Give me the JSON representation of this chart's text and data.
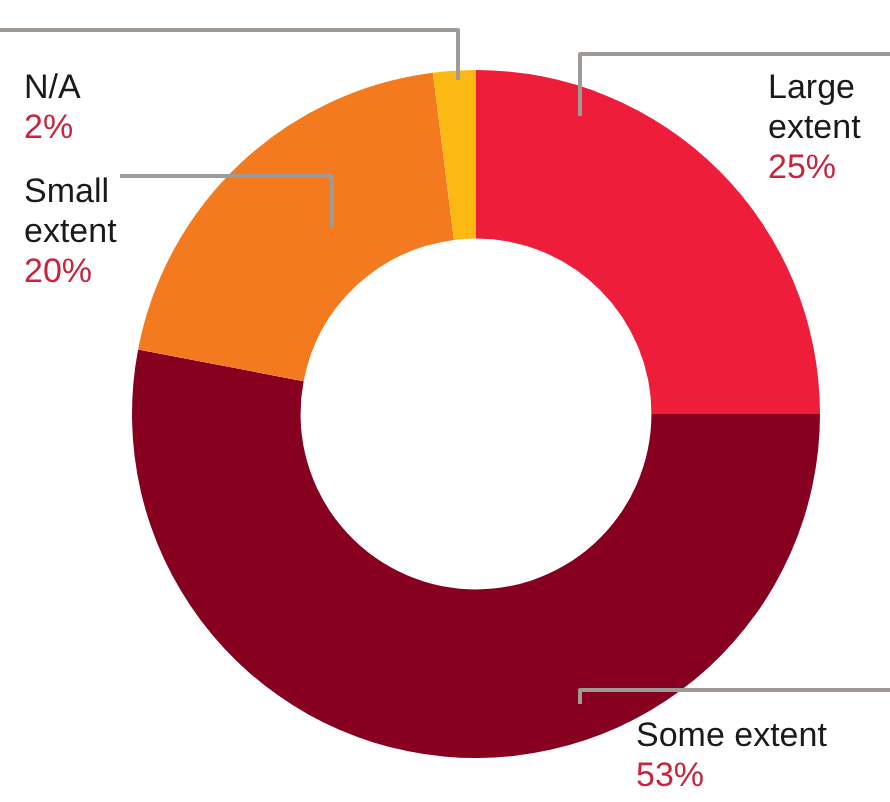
{
  "chart_data": {
    "type": "donut",
    "categories": [
      "Large extent",
      "Some extent",
      "Small extent",
      "N/A"
    ],
    "values": [
      25,
      53,
      20,
      2
    ],
    "colors": [
      "#ee1d3a",
      "#870020",
      "#f47a20",
      "#fdb913"
    ],
    "value_labels": [
      "25%",
      "53%",
      "20%",
      "2%"
    ],
    "legend": false
  }
}
